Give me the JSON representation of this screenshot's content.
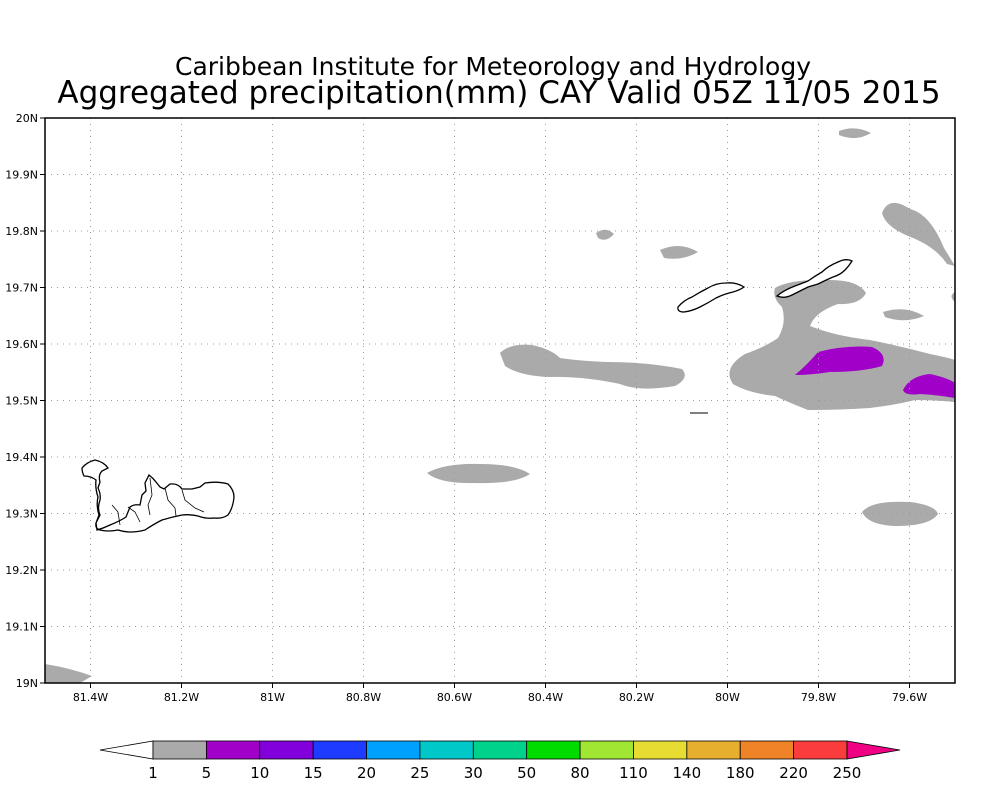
{
  "title_line1": "Caribbean Institute for Meteorology and Hydrology",
  "title_line2": "Aggregated precipitation(mm) CAY Valid 05Z 11/05 2015",
  "map": {
    "lon_range": [
      -81.5,
      -79.5
    ],
    "lat_range": [
      19.0,
      20.0
    ],
    "lon_ticks": [
      {
        "value": -81.4,
        "label": "81.4W"
      },
      {
        "value": -81.2,
        "label": "81.2W"
      },
      {
        "value": -81.0,
        "label": "81W"
      },
      {
        "value": -80.8,
        "label": "80.8W"
      },
      {
        "value": -80.6,
        "label": "80.6W"
      },
      {
        "value": -80.4,
        "label": "80.4W"
      },
      {
        "value": -80.2,
        "label": "80.2W"
      },
      {
        "value": -80.0,
        "label": "80W"
      },
      {
        "value": -79.8,
        "label": "79.8W"
      },
      {
        "value": -79.6,
        "label": "79.6W"
      }
    ],
    "lat_ticks": [
      {
        "value": 20.0,
        "label": "20N"
      },
      {
        "value": 19.9,
        "label": "19.9N"
      },
      {
        "value": 19.8,
        "label": "19.8N"
      },
      {
        "value": 19.7,
        "label": "19.7N"
      },
      {
        "value": 19.6,
        "label": "19.6N"
      },
      {
        "value": 19.5,
        "label": "19.5N"
      },
      {
        "value": 19.4,
        "label": "19.4N"
      },
      {
        "value": 19.3,
        "label": "19.3N"
      },
      {
        "value": 19.2,
        "label": "19.2N"
      },
      {
        "value": 19.1,
        "label": "19.1N"
      },
      {
        "value": 19.0,
        "label": "19N"
      }
    ],
    "grid": true
  },
  "colorbar": {
    "labels": [
      "1",
      "5",
      "10",
      "15",
      "20",
      "25",
      "30",
      "50",
      "80",
      "110",
      "140",
      "180",
      "220",
      "250"
    ],
    "colors": [
      "#aaaaaa",
      "#a000c8",
      "#8200dc",
      "#1e3cff",
      "#00a0ff",
      "#00c8c8",
      "#00d28c",
      "#00dc00",
      "#a0e632",
      "#e6dc32",
      "#e6af2d",
      "#f08228",
      "#fa3c3c",
      "#f00082"
    ],
    "below_color": "#ffffff"
  },
  "colors": {
    "precip_light": "#aaaaaa",
    "precip_heavy": "#a000c8"
  }
}
